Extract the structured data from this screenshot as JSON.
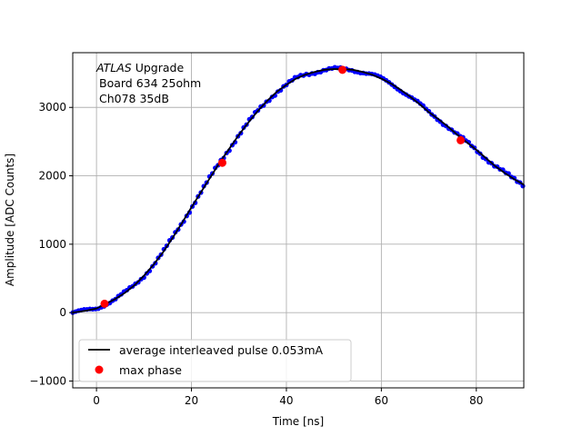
{
  "chart_data": {
    "type": "scatter",
    "title": "",
    "xlabel": "Time [ns]",
    "ylabel": "Amplitude [ADC Counts]",
    "xlim": [
      -5,
      90
    ],
    "ylim": [
      -1100,
      3800
    ],
    "xticks": [
      0,
      20,
      40,
      60,
      80
    ],
    "yticks": [
      -1000,
      0,
      1000,
      2000,
      3000
    ],
    "grid": true,
    "legend_position": "lower-left",
    "annotation": {
      "line1_italic": "ATLAS",
      "line1_rest": " Upgrade",
      "line2": "Board 634 25ohm",
      "line3": "Ch078 35dB"
    },
    "colors": {
      "samples": "#0000ff",
      "average": "#000000",
      "max_phase": "#ff0000",
      "grid": "#b0b0b0"
    },
    "series": [
      {
        "name": "average interleaved pulse 0.053mA",
        "kind": "line",
        "x": [
          -5,
          -2,
          0,
          2,
          4,
          6,
          8,
          10,
          12,
          14,
          16,
          18,
          20,
          22,
          24,
          26,
          28,
          30,
          32,
          34,
          36,
          38,
          40,
          42,
          44,
          46,
          48,
          50,
          52,
          54,
          56,
          58,
          60,
          62,
          64,
          66,
          68,
          70,
          72,
          74,
          76,
          78,
          80,
          82,
          84,
          86,
          88,
          90
        ],
        "y": [
          0,
          30,
          60,
          130,
          200,
          290,
          400,
          540,
          700,
          880,
          1090,
          1310,
          1540,
          1760,
          1980,
          2200,
          2400,
          2600,
          2780,
          2950,
          3100,
          3230,
          3330,
          3420,
          3480,
          3520,
          3550,
          3560,
          3560,
          3550,
          3520,
          3480,
          3420,
          3350,
          3260,
          3160,
          3050,
          2930,
          2830,
          2720,
          2600,
          2490,
          2380,
          2260,
          2140,
          2040,
          1950,
          1870
        ]
      },
      {
        "name": "max phase",
        "kind": "points",
        "x": [
          1.7,
          26.5,
          51.8,
          76.7
        ],
        "y": [
          130,
          2190,
          3550,
          2520
        ]
      }
    ],
    "scatter_samples": {
      "x_start": -5,
      "x_end": 90,
      "spacing": 0.6
    }
  }
}
